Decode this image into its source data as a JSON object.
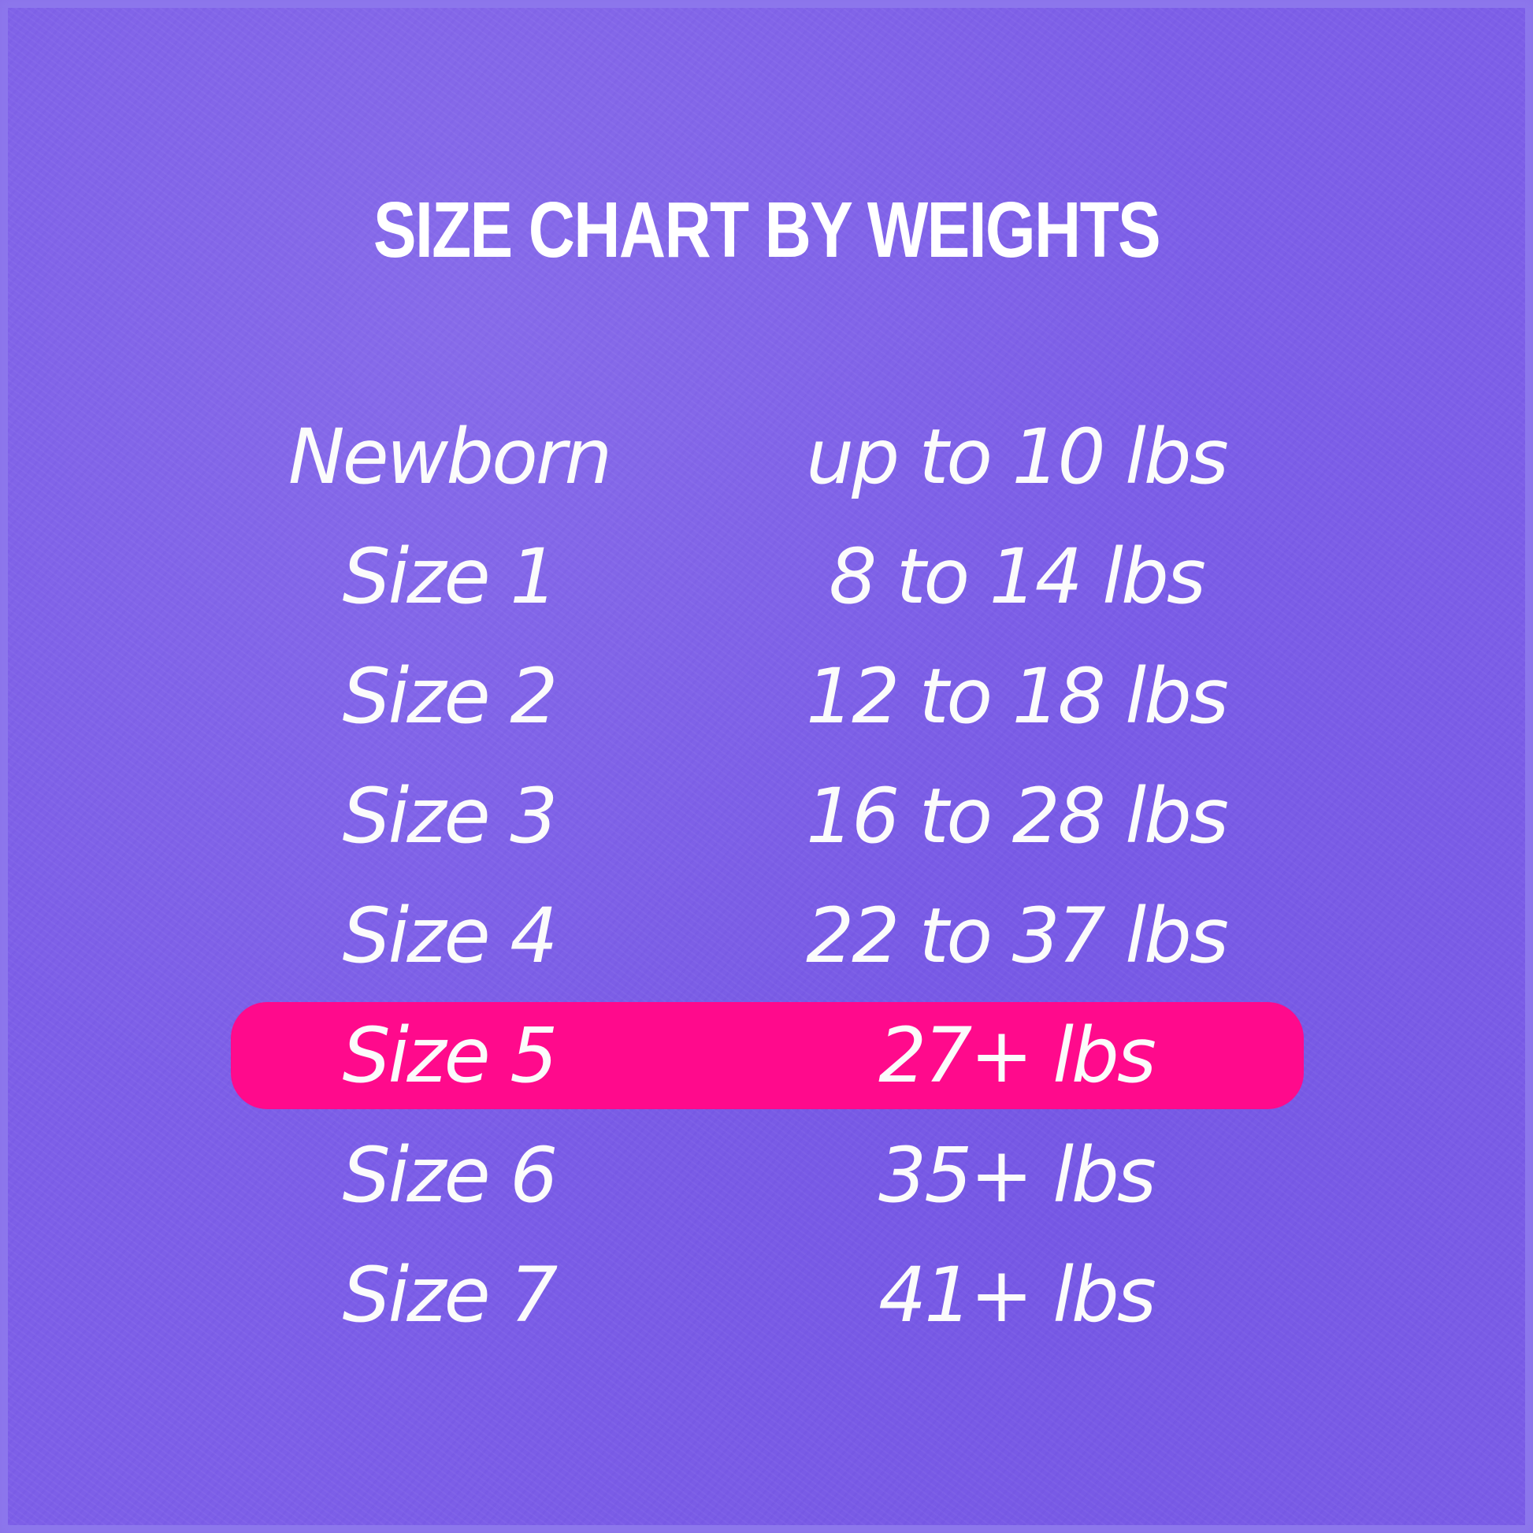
{
  "title": "SIZE CHART BY WEIGHTS",
  "colors": {
    "background": "#7d5fe8",
    "highlight": "#ff0a8c",
    "text": "#ffffff"
  },
  "rows": [
    {
      "size": "Newborn",
      "weight": "up to 10 lbs",
      "highlighted": false
    },
    {
      "size": "Size 1",
      "weight": "8 to 14 lbs",
      "highlighted": false
    },
    {
      "size": "Size 2",
      "weight": "12 to 18 lbs",
      "highlighted": false
    },
    {
      "size": "Size 3",
      "weight": "16 to 28 lbs",
      "highlighted": false
    },
    {
      "size": "Size 4",
      "weight": "22 to 37 lbs",
      "highlighted": false
    },
    {
      "size": "Size 5",
      "weight": "27+ lbs",
      "highlighted": true
    },
    {
      "size": "Size 6",
      "weight": "35+ lbs",
      "highlighted": false
    },
    {
      "size": "Size 7",
      "weight": "41+ lbs",
      "highlighted": false
    }
  ]
}
